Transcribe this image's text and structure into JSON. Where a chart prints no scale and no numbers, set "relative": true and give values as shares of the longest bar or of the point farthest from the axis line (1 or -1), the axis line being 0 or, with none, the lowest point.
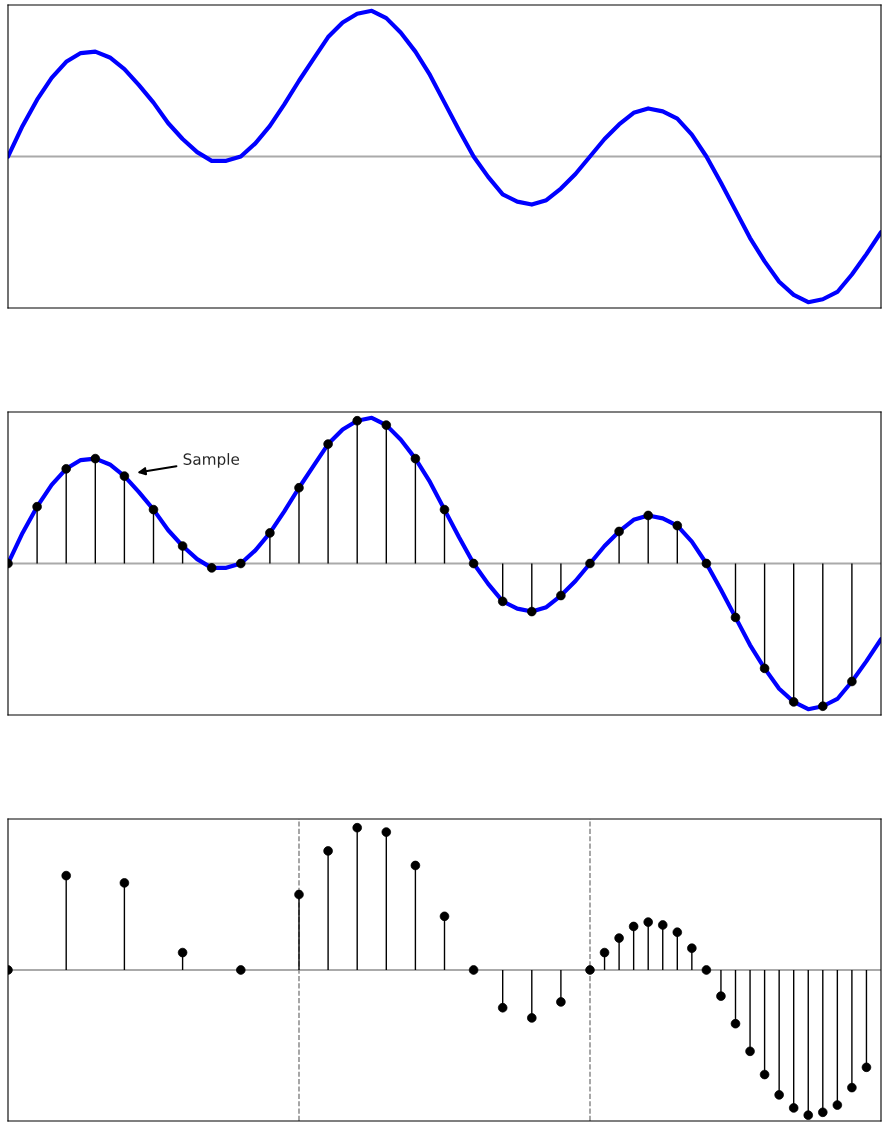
{
  "chart_data": [
    {
      "type": "line",
      "relative": true,
      "categories": [
        null,
        null,
        null,
        null,
        null,
        null,
        null,
        null,
        null,
        null,
        null,
        null,
        null,
        null,
        null,
        null,
        null,
        null,
        null,
        null,
        null,
        null,
        null,
        null,
        null,
        null,
        null,
        null,
        null,
        null,
        null,
        null,
        null,
        null,
        null,
        null,
        null,
        null,
        null,
        null,
        null,
        null,
        null,
        null,
        null,
        null,
        null,
        null,
        null,
        null,
        null,
        null,
        null,
        null,
        null,
        null,
        null,
        null,
        null,
        null,
        null
      ],
      "series": [
        {
          "type": "line",
          "color": "#0000ff",
          "values": [
            0,
            0.21,
            0.39,
            0.54,
            0.65,
            0.71,
            0.72,
            0.68,
            0.6,
            0.49,
            0.37,
            0.23,
            0.12,
            0.03,
            -0.03,
            -0.03,
            0,
            0.09,
            0.21,
            0.36,
            0.52,
            0.67,
            0.82,
            0.92,
            0.98,
            1.0,
            0.95,
            0.85,
            0.72,
            0.56,
            0.37,
            0.18,
            0,
            -0.14,
            -0.26,
            -0.31,
            -0.33,
            -0.3,
            -0.22,
            -0.12,
            0,
            0.12,
            0.22,
            0.3,
            0.33,
            0.31,
            0.26,
            0.15,
            0,
            -0.18,
            -0.37,
            -0.56,
            -0.72,
            -0.86,
            -0.95,
            -1.0,
            -0.98,
            -0.93,
            -0.81,
            -0.67,
            -0.52
          ]
        }
      ]
    },
    {
      "type": "line",
      "relative": true,
      "categories": [
        null,
        null,
        null,
        null,
        null,
        null,
        null,
        null,
        null,
        null,
        null,
        null,
        null,
        null,
        null,
        null,
        null,
        null,
        null,
        null,
        null,
        null,
        null,
        null,
        null,
        null,
        null,
        null,
        null,
        null,
        null,
        null,
        null,
        null,
        null,
        null,
        null,
        null,
        null,
        null,
        null,
        null,
        null,
        null,
        null,
        null,
        null,
        null,
        null,
        null,
        null,
        null,
        null,
        null,
        null,
        null,
        null,
        null,
        null,
        null,
        null
      ],
      "series": [
        {
          "type": "line",
          "color": "#0000ff",
          "values": [
            0,
            0.21,
            0.39,
            0.54,
            0.65,
            0.71,
            0.72,
            0.68,
            0.6,
            0.49,
            0.37,
            0.23,
            0.12,
            0.03,
            -0.03,
            -0.03,
            0,
            0.09,
            0.21,
            0.36,
            0.52,
            0.67,
            0.82,
            0.92,
            0.98,
            1.0,
            0.95,
            0.85,
            0.72,
            0.56,
            0.37,
            0.18,
            0,
            -0.14,
            -0.26,
            -0.31,
            -0.33,
            -0.3,
            -0.22,
            -0.12,
            0,
            0.12,
            0.22,
            0.3,
            0.33,
            0.31,
            0.26,
            0.15,
            0,
            -0.18,
            -0.37,
            -0.56,
            -0.72,
            -0.86,
            -0.95,
            -1.0,
            -0.98,
            -0.93,
            -0.81,
            -0.67,
            -0.52
          ]
        },
        {
          "type": "lollipop",
          "color": "#000000",
          "marker": "circle",
          "values": [
            0,
            null,
            0.39,
            null,
            0.65,
            null,
            0.72,
            null,
            0.6,
            null,
            0.37,
            null,
            0.12,
            null,
            -0.03,
            null,
            0,
            null,
            0.21,
            null,
            0.52,
            null,
            0.82,
            null,
            0.98,
            null,
            0.95,
            null,
            0.72,
            null,
            0.37,
            null,
            0,
            null,
            -0.26,
            null,
            -0.33,
            null,
            -0.22,
            null,
            0,
            null,
            0.22,
            null,
            0.33,
            null,
            0.26,
            null,
            0,
            null,
            -0.37,
            null,
            -0.72,
            null,
            -0.95,
            null,
            -0.98,
            null,
            -0.81,
            null,
            null
          ]
        }
      ],
      "annotations": [
        "Sample"
      ]
    },
    {
      "type": "lollipop",
      "relative": true,
      "marker": "circle",
      "color": "#000000",
      "categories": [
        null,
        null,
        null,
        null,
        null,
        null,
        null,
        null,
        null,
        null,
        null,
        null,
        null,
        null,
        null,
        null,
        null,
        null,
        null,
        null,
        null,
        null,
        null,
        null,
        null,
        null,
        null,
        null,
        null,
        null,
        null,
        null,
        null,
        null,
        null,
        null,
        null,
        null,
        null,
        null,
        null,
        null,
        null,
        null,
        null,
        null,
        null,
        null,
        null,
        null,
        null,
        null,
        null,
        null,
        null,
        null,
        null,
        null,
        null,
        null,
        null
      ],
      "values": [
        0,
        null,
        null,
        null,
        0.65,
        null,
        null,
        null,
        0.6,
        null,
        null,
        null,
        0.12,
        null,
        null,
        null,
        0,
        null,
        null,
        null,
        0.52,
        null,
        0.82,
        null,
        0.98,
        null,
        0.95,
        null,
        0.72,
        null,
        0.37,
        null,
        0,
        null,
        -0.26,
        null,
        -0.33,
        null,
        -0.22,
        null,
        0,
        0.12,
        0.22,
        0.3,
        0.33,
        0.31,
        0.26,
        0.15,
        0,
        -0.18,
        -0.37,
        -0.56,
        -0.72,
        -0.86,
        -0.95,
        -1.0,
        -0.98,
        -0.93,
        -0.81,
        -0.67,
        null
      ]
    }
  ]
}
